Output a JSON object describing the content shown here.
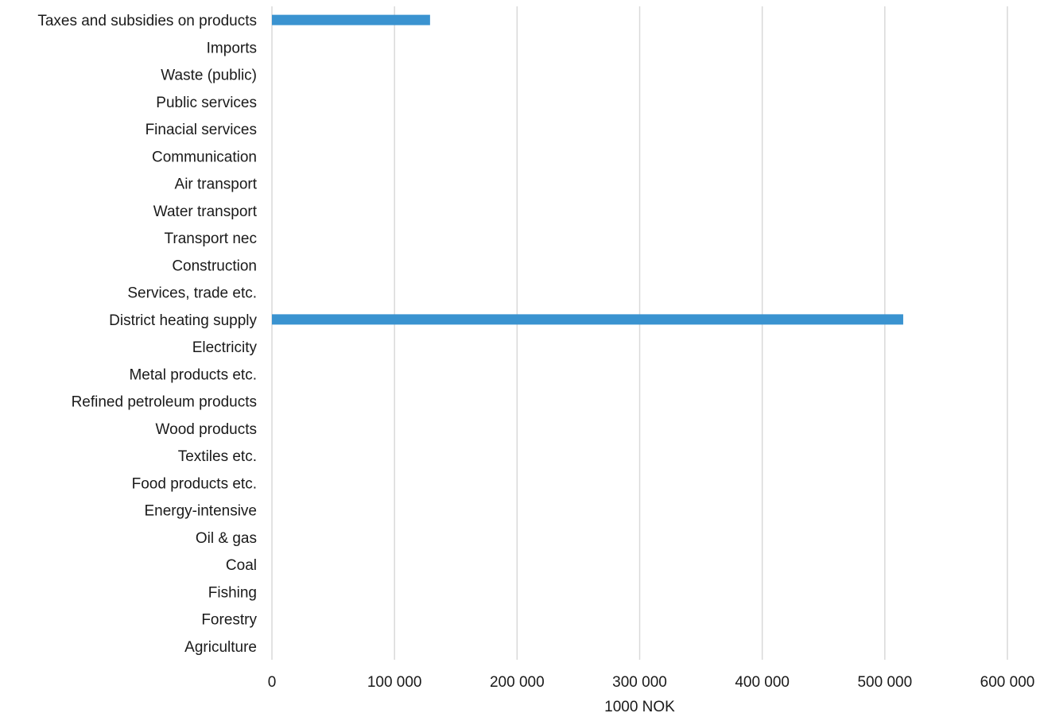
{
  "chart_data": {
    "type": "bar",
    "orientation": "horizontal",
    "title": "",
    "xlabel": "1000 NOK",
    "ylabel": "",
    "xlim": [
      0,
      600000
    ],
    "x_ticks": [
      0,
      100000,
      200000,
      300000,
      400000,
      500000,
      600000
    ],
    "x_tick_labels": [
      "0",
      "100 000",
      "200 000",
      "300 000",
      "400 000",
      "500 000",
      "600 000"
    ],
    "grid": "vertical",
    "legend": "none",
    "categories": [
      "Taxes and subsidies on products",
      "Imports",
      "Waste (public)",
      "Public services",
      "Finacial services",
      "Communication",
      "Air transport",
      "Water transport",
      "Transport nec",
      "Construction",
      "Services, trade etc.",
      "District heating supply",
      "Electricity",
      "Metal products etc.",
      "Refined petroleum products",
      "Wood products",
      "Textiles etc.",
      "Food products etc.",
      "Energy-intensive",
      "Oil & gas",
      "Coal",
      "Fishing",
      "Forestry",
      "Agriculture"
    ],
    "values": [
      129000,
      0,
      0,
      0,
      0,
      0,
      0,
      0,
      0,
      0,
      0,
      515000,
      0,
      0,
      0,
      0,
      0,
      0,
      0,
      0,
      0,
      0,
      0,
      0
    ],
    "colors": {
      "bar": "#3a93d0",
      "grid": "#d9d9d9",
      "text": "#1a1a1a"
    }
  }
}
